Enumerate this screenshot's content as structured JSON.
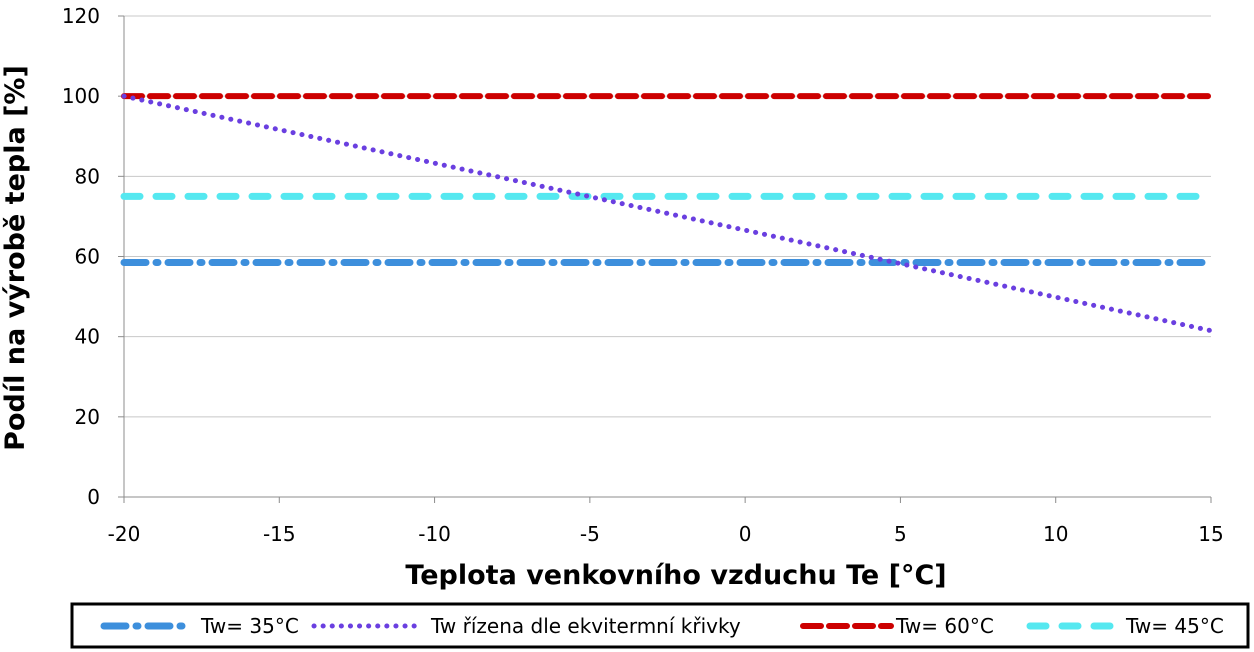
{
  "chart_data": {
    "type": "line",
    "xlabel": "Teplota venkovního vzduchu Te [°C]",
    "ylabel": "Podíl na výrobě tepla [%]",
    "xlim": [
      -20,
      15
    ],
    "ylim": [
      0,
      120
    ],
    "x_ticks": [
      -20,
      -15,
      -10,
      -5,
      0,
      5,
      10,
      15
    ],
    "y_ticks": [
      0,
      20,
      40,
      60,
      80,
      100,
      120
    ],
    "grid": "horizontal",
    "legend_position": "bottom",
    "series": [
      {
        "name": "Tw= 35°C",
        "color": "#3d8fdc",
        "style": "dash-dot",
        "x": [
          -20,
          15
        ],
        "y": [
          58.5,
          58.5
        ]
      },
      {
        "name": "Tw řízena dle ekvitermní křivky",
        "color": "#6a3fe0",
        "style": "dotted",
        "x": [
          -20,
          15
        ],
        "y": [
          100,
          41.5
        ]
      },
      {
        "name": "Tw= 60°C",
        "color": "#cc0000",
        "style": "dashed",
        "x": [
          -20,
          15
        ],
        "y": [
          100,
          100
        ]
      },
      {
        "name": "Tw= 45°C",
        "color": "#55e8f0",
        "style": "long-dash",
        "x": [
          -20,
          15
        ],
        "y": [
          75,
          75
        ]
      }
    ]
  }
}
